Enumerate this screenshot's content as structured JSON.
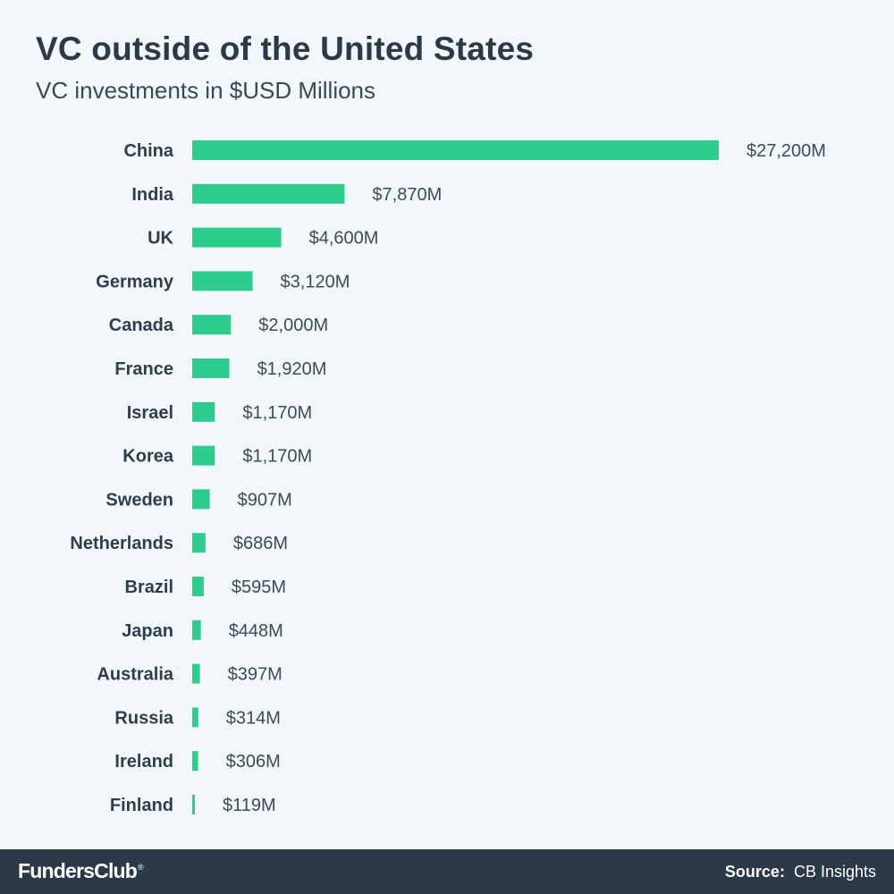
{
  "header": {
    "title": "VC outside of the United States",
    "subtitle": "VC investments in $USD Millions"
  },
  "chart_data": {
    "type": "bar",
    "orientation": "horizontal",
    "title": "VC outside of the United States",
    "subtitle": "VC investments in $USD Millions",
    "categories": [
      "China",
      "India",
      "UK",
      "Germany",
      "Canada",
      "France",
      "Israel",
      "Korea",
      "Sweden",
      "Netherlands",
      "Brazil",
      "Japan",
      "Australia",
      "Russia",
      "Ireland",
      "Finland"
    ],
    "values": [
      27200,
      7870,
      4600,
      3120,
      2000,
      1920,
      1170,
      1170,
      907,
      686,
      595,
      448,
      397,
      314,
      306,
      119
    ],
    "value_labels": [
      "$27,200M",
      "$7,870M",
      "$4,600M",
      "$3,120M",
      "$2,000M",
      "$1,920M",
      "$1,170M",
      "$1,170M",
      "$907M",
      "$686M",
      "$595M",
      "$448M",
      "$397M",
      "$314M",
      "$306M",
      "$119M"
    ],
    "xlim": [
      0,
      27200
    ],
    "grid": false,
    "legend": "none",
    "bar_color": "#2ecc8f"
  },
  "footer": {
    "brand": "FundersClub",
    "brand_mark": "®",
    "source_label": "Source:",
    "source_value": "CB Insights"
  },
  "colors": {
    "background": "#f2f7fa",
    "bar": "#2ecc8f",
    "footer": "#2c3a48",
    "text": "#2f3e4c"
  }
}
